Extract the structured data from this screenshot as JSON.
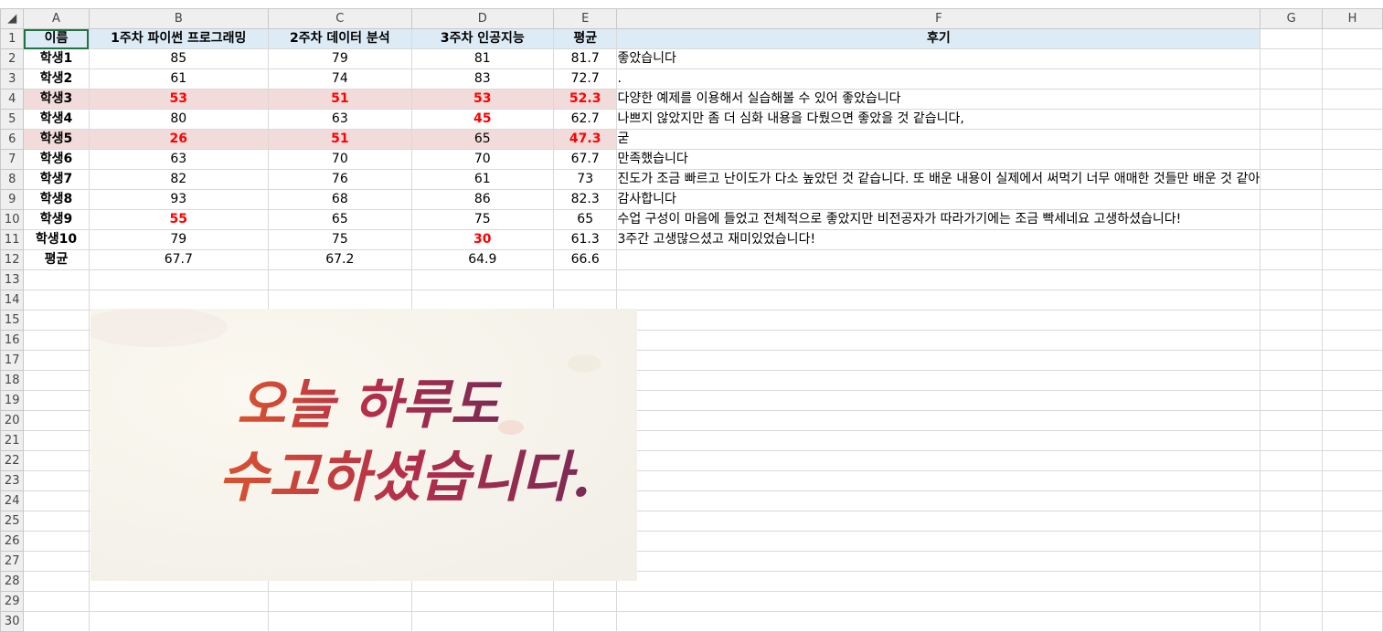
{
  "columns": [
    "A",
    "B",
    "C",
    "D",
    "E",
    "F",
    "G",
    "H"
  ],
  "rows": [
    "1",
    "2",
    "3",
    "4",
    "5",
    "6",
    "7",
    "8",
    "9",
    "10",
    "11",
    "12",
    "13",
    "14",
    "15",
    "16",
    "17",
    "18",
    "19",
    "20",
    "21",
    "22",
    "23",
    "24",
    "25",
    "26",
    "27",
    "28",
    "29",
    "30"
  ],
  "header": {
    "name": "이름",
    "week1": "1주차 파이썬 프로그래밍",
    "week2": "2주차 데이터 분석",
    "week3": "3주차 인공지능",
    "avg": "평균",
    "review": "후기"
  },
  "students": [
    {
      "name": "학생1",
      "w1": "85",
      "w2": "79",
      "w3": "81",
      "avg": "81.7",
      "review": "좋았습니다"
    },
    {
      "name": "학생2",
      "w1": "61",
      "w2": "74",
      "w3": "83",
      "avg": "72.7",
      "review": "."
    },
    {
      "name": "학생3",
      "w1": "53",
      "w2": "51",
      "w3": "53",
      "avg": "52.3",
      "review": "다양한 예제를 이용해서 실습해볼 수 있어 좋았습니다"
    },
    {
      "name": "학생4",
      "w1": "80",
      "w2": "63",
      "w3": "45",
      "avg": "62.7",
      "review": "나쁘지 않았지만 좀 더 심화 내용을 다뤘으면 좋았을 것 같습니다,"
    },
    {
      "name": "학생5",
      "w1": "26",
      "w2": "51",
      "w3": "65",
      "avg": "47.3",
      "review": "굳"
    },
    {
      "name": "학생6",
      "w1": "63",
      "w2": "70",
      "w3": "70",
      "avg": "67.7",
      "review": "만족했습니다"
    },
    {
      "name": "학생7",
      "w1": "82",
      "w2": "76",
      "w3": "61",
      "avg": "73",
      "review": "진도가 조금 빠르고 난이도가 다소 높았던 것 같습니다. 또 배운 내용이 실제에서 써먹기 너무 애매한 것들만 배운 것 같아"
    },
    {
      "name": "학생8",
      "w1": "93",
      "w2": "68",
      "w3": "86",
      "avg": "82.3",
      "review": "감사합니다"
    },
    {
      "name": "학생9",
      "w1": "55",
      "w2": "65",
      "w3": "75",
      "avg": "65",
      "review": "수업 구성이 마음에 들었고 전체적으로 좋았지만 비전공자가 따라가기에는 조금 빡세네요 고생하셨습니다!"
    },
    {
      "name": "학생10",
      "w1": "79",
      "w2": "75",
      "w3": "30",
      "avg": "61.3",
      "review": "3주간 고생많으셨고 재미있었습니다!"
    }
  ],
  "average_row": {
    "name": "평균",
    "w1": "67.7",
    "w2": "67.2",
    "w3": "64.9",
    "avg": "66.6",
    "review": ""
  },
  "image": {
    "line1": "오늘 하루도",
    "line2": "수고하셨습니다."
  },
  "colors": {
    "header_fill": "#ddebf7",
    "highlight_fill": "#f2dcdb",
    "low_score": "#ff0000",
    "selection": "#217346"
  },
  "low_score_rule": "< 56"
}
